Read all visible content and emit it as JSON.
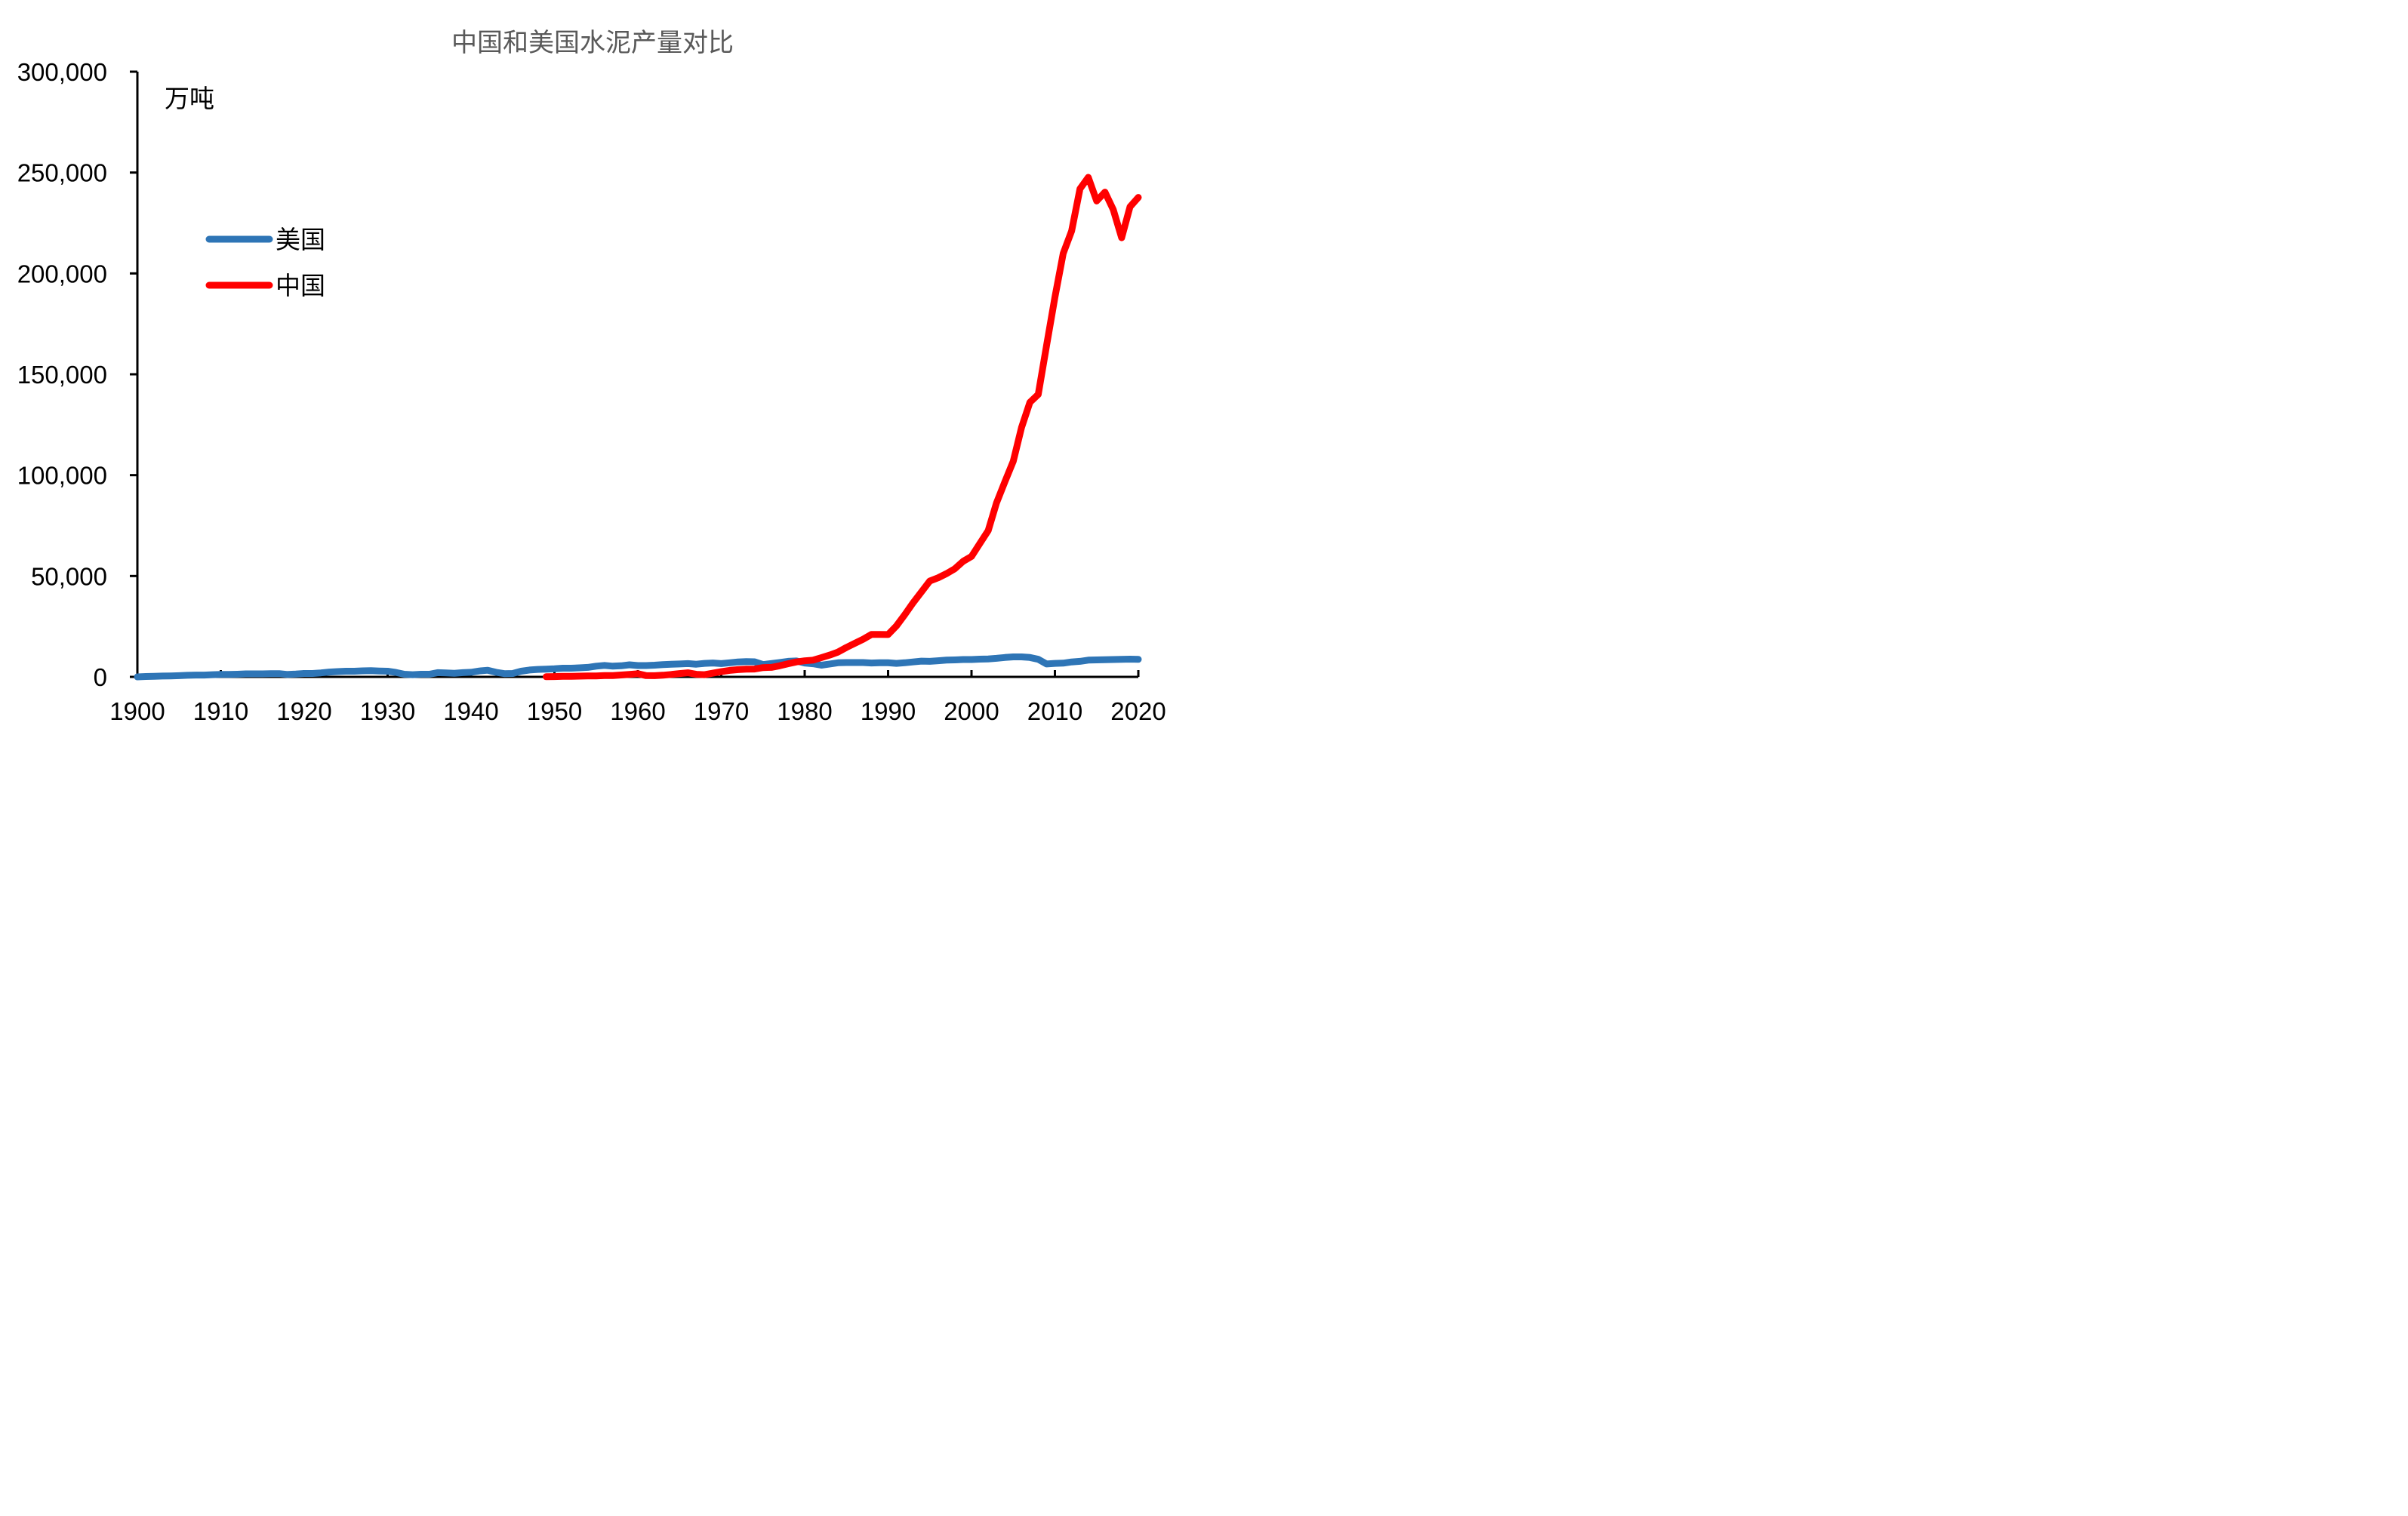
{
  "chart_data": {
    "type": "line",
    "title": "中国和美国水泥产量对比",
    "unit_label": "万吨",
    "xlabel": "",
    "ylabel": "",
    "xlim": [
      1900,
      2020
    ],
    "ylim": [
      0,
      300000
    ],
    "x_ticks": [
      "1900",
      "1910",
      "1920",
      "1930",
      "1940",
      "1950",
      "1960",
      "1970",
      "1980",
      "1990",
      "2000",
      "2010",
      "2020"
    ],
    "y_ticks": [
      "0",
      "50,000",
      "100,000",
      "150,000",
      "200,000",
      "250,000",
      "300,000"
    ],
    "grid": false,
    "legend_position": "upper-left",
    "series": [
      {
        "name": "美国",
        "color": "#2E75B6",
        "points": [
          [
            1900,
            0
          ],
          [
            1901,
            200
          ],
          [
            1902,
            300
          ],
          [
            1903,
            400
          ],
          [
            1904,
            500
          ],
          [
            1905,
            600
          ],
          [
            1906,
            800
          ],
          [
            1907,
            900
          ],
          [
            1908,
            900
          ],
          [
            1909,
            1100
          ],
          [
            1910,
            1200
          ],
          [
            1911,
            1200
          ],
          [
            1912,
            1300
          ],
          [
            1913,
            1500
          ],
          [
            1914,
            1500
          ],
          [
            1915,
            1500
          ],
          [
            1916,
            1600
          ],
          [
            1917,
            1600
          ],
          [
            1918,
            1200
          ],
          [
            1919,
            1400
          ],
          [
            1920,
            1700
          ],
          [
            1921,
            1700
          ],
          [
            1922,
            2000
          ],
          [
            1923,
            2400
          ],
          [
            1924,
            2600
          ],
          [
            1925,
            2800
          ],
          [
            1926,
            2800
          ],
          [
            1927,
            3000
          ],
          [
            1928,
            3100
          ],
          [
            1929,
            2900
          ],
          [
            1930,
            2800
          ],
          [
            1931,
            2200
          ],
          [
            1932,
            1300
          ],
          [
            1933,
            1100
          ],
          [
            1934,
            1300
          ],
          [
            1935,
            1300
          ],
          [
            1936,
            2100
          ],
          [
            1937,
            2000
          ],
          [
            1938,
            1800
          ],
          [
            1939,
            2100
          ],
          [
            1940,
            2300
          ],
          [
            1941,
            2900
          ],
          [
            1942,
            3300
          ],
          [
            1943,
            2300
          ],
          [
            1944,
            1600
          ],
          [
            1945,
            1700
          ],
          [
            1946,
            2800
          ],
          [
            1947,
            3400
          ],
          [
            1948,
            3700
          ],
          [
            1949,
            3800
          ],
          [
            1950,
            4000
          ],
          [
            1951,
            4300
          ],
          [
            1952,
            4300
          ],
          [
            1953,
            4500
          ],
          [
            1954,
            4700
          ],
          [
            1955,
            5300
          ],
          [
            1956,
            5700
          ],
          [
            1957,
            5300
          ],
          [
            1958,
            5500
          ],
          [
            1959,
            6000
          ],
          [
            1960,
            5600
          ],
          [
            1961,
            5600
          ],
          [
            1962,
            5800
          ],
          [
            1963,
            6100
          ],
          [
            1964,
            6300
          ],
          [
            1965,
            6400
          ],
          [
            1966,
            6600
          ],
          [
            1967,
            6300
          ],
          [
            1968,
            6700
          ],
          [
            1969,
            6900
          ],
          [
            1970,
            6600
          ],
          [
            1971,
            7000
          ],
          [
            1972,
            7400
          ],
          [
            1973,
            7600
          ],
          [
            1974,
            7500
          ],
          [
            1975,
            6100
          ],
          [
            1976,
            6600
          ],
          [
            1977,
            7100
          ],
          [
            1978,
            7700
          ],
          [
            1979,
            7900
          ],
          [
            1980,
            6900
          ],
          [
            1981,
            6500
          ],
          [
            1982,
            5800
          ],
          [
            1983,
            6400
          ],
          [
            1984,
            7000
          ],
          [
            1985,
            7100
          ],
          [
            1986,
            7100
          ],
          [
            1987,
            7100
          ],
          [
            1988,
            6900
          ],
          [
            1989,
            7000
          ],
          [
            1990,
            7000
          ],
          [
            1991,
            6700
          ],
          [
            1992,
            7000
          ],
          [
            1993,
            7400
          ],
          [
            1994,
            7800
          ],
          [
            1995,
            7700
          ],
          [
            1996,
            8000
          ],
          [
            1997,
            8300
          ],
          [
            1998,
            8400
          ],
          [
            1999,
            8600
          ],
          [
            2000,
            8600
          ],
          [
            2001,
            8800
          ],
          [
            2002,
            8900
          ],
          [
            2003,
            9200
          ],
          [
            2004,
            9600
          ],
          [
            2005,
            9900
          ],
          [
            2006,
            9900
          ],
          [
            2007,
            9600
          ],
          [
            2008,
            8700
          ],
          [
            2009,
            6400
          ],
          [
            2010,
            6700
          ],
          [
            2011,
            6800
          ],
          [
            2012,
            7400
          ],
          [
            2013,
            7700
          ],
          [
            2014,
            8300
          ],
          [
            2015,
            8400
          ],
          [
            2016,
            8500
          ],
          [
            2017,
            8600
          ],
          [
            2018,
            8700
          ],
          [
            2019,
            8800
          ],
          [
            2020,
            8700
          ]
        ]
      },
      {
        "name": "中国",
        "color": "#FF0000",
        "points": [
          [
            1949,
            66
          ],
          [
            1950,
            141
          ],
          [
            1951,
            249
          ],
          [
            1952,
            286
          ],
          [
            1953,
            388
          ],
          [
            1954,
            460
          ],
          [
            1955,
            450
          ],
          [
            1956,
            639
          ],
          [
            1957,
            686
          ],
          [
            1958,
            930
          ],
          [
            1959,
            1227
          ],
          [
            1960,
            1565
          ],
          [
            1961,
            621
          ],
          [
            1962,
            600
          ],
          [
            1963,
            806
          ],
          [
            1964,
            1200
          ],
          [
            1965,
            1634
          ],
          [
            1966,
            2015
          ],
          [
            1967,
            1287
          ],
          [
            1968,
            1100
          ],
          [
            1969,
            1828
          ],
          [
            1970,
            2575
          ],
          [
            1971,
            3200
          ],
          [
            1972,
            3600
          ],
          [
            1973,
            3800
          ],
          [
            1974,
            3900
          ],
          [
            1975,
            4600
          ],
          [
            1976,
            4700
          ],
          [
            1977,
            5500
          ],
          [
            1978,
            6524
          ],
          [
            1979,
            7390
          ],
          [
            1980,
            7986
          ],
          [
            1981,
            8290
          ],
          [
            1982,
            9520
          ],
          [
            1983,
            10825
          ],
          [
            1984,
            12302
          ],
          [
            1985,
            14595
          ],
          [
            1986,
            16606
          ],
          [
            1987,
            18625
          ],
          [
            1988,
            21014
          ],
          [
            1989,
            21029
          ],
          [
            1990,
            20971
          ],
          [
            1991,
            25261
          ],
          [
            1992,
            30822
          ],
          [
            1993,
            36788
          ],
          [
            1994,
            42118
          ],
          [
            1995,
            47561
          ],
          [
            1996,
            49119
          ],
          [
            1997,
            51174
          ],
          [
            1998,
            53600
          ],
          [
            1999,
            57300
          ],
          [
            2000,
            59700
          ],
          [
            2001,
            66104
          ],
          [
            2002,
            72500
          ],
          [
            2003,
            86208
          ],
          [
            2004,
            96682
          ],
          [
            2005,
            106885
          ],
          [
            2006,
            123676
          ],
          [
            2007,
            136117
          ],
          [
            2008,
            140000
          ],
          [
            2009,
            164398
          ],
          [
            2010,
            188191
          ],
          [
            2011,
            209926
          ],
          [
            2012,
            220984
          ],
          [
            2013,
            241924
          ],
          [
            2014,
            247619
          ],
          [
            2015,
            235918
          ],
          [
            2016,
            240295
          ],
          [
            2017,
            231625
          ],
          [
            2018,
            217667
          ],
          [
            2019,
            233036
          ],
          [
            2020,
            237691
          ]
        ]
      }
    ]
  }
}
